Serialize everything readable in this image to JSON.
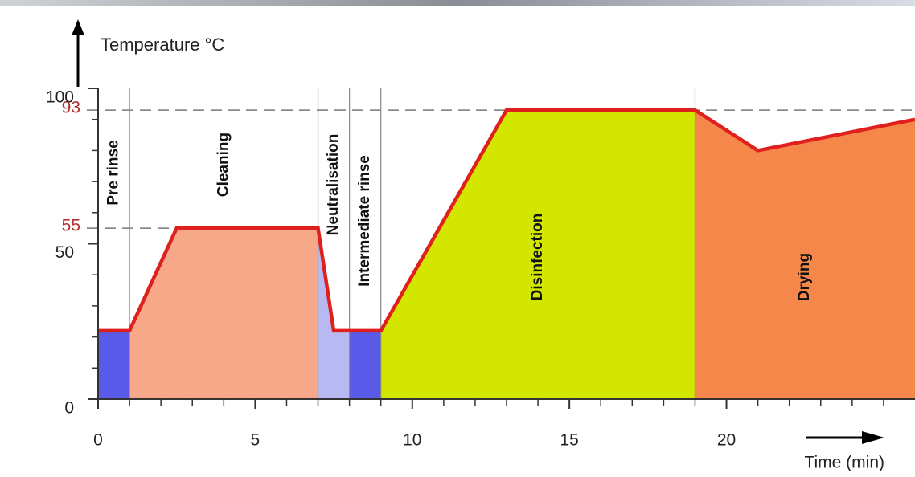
{
  "chart_data": {
    "type": "area",
    "y_label": "Temperature °C",
    "x_label": "Time (min)",
    "x": [
      0,
      1,
      2.5,
      7,
      7.5,
      9,
      13,
      19,
      21,
      26
    ],
    "values": [
      22,
      22,
      55,
      55,
      22,
      22,
      93,
      93,
      80,
      90
    ],
    "color": "#e0201c",
    "xlim": [
      0,
      26
    ],
    "ylim": [
      0,
      100
    ],
    "xticks": [
      0,
      5,
      10,
      15,
      20
    ],
    "xminorticks": [
      1,
      2,
      3,
      4,
      6,
      7,
      8,
      9,
      11,
      12,
      13,
      14,
      16,
      17,
      18,
      19,
      21,
      22,
      23,
      24,
      25
    ],
    "yticks": [
      0,
      50,
      100
    ],
    "yminorticks": [
      10,
      20,
      30,
      40,
      60,
      70,
      80,
      90
    ],
    "reference_lines": [
      {
        "value": 93,
        "color": "#b03030",
        "extent": "full"
      },
      {
        "value": 55,
        "color": "#b03030",
        "extent": "to-curve"
      }
    ],
    "phases": [
      {
        "label": "Pre rinse",
        "start": 0,
        "end": 1,
        "color": "#5a5ae8"
      },
      {
        "label": "Cleaning",
        "start": 1,
        "end": 7,
        "color": "#f6a888"
      },
      {
        "label": "Neutralisation",
        "start": 7,
        "end": 8,
        "color": "#b8b8f2"
      },
      {
        "label": "Intermediate rinse",
        "start": 8,
        "end": 9,
        "color": "#5a5ae8"
      },
      {
        "label": "Disinfection",
        "start": 9,
        "end": 19,
        "color": "#d2e600"
      },
      {
        "label": "Drying",
        "start": 19,
        "end": 26,
        "color": "#f5874a"
      }
    ]
  }
}
